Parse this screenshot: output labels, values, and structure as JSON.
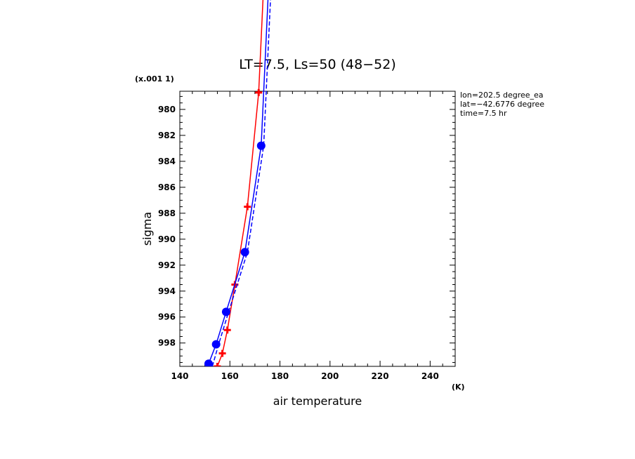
{
  "chart_data": {
    "type": "line",
    "title": "LT=7.5, Ls=50 (48−52)",
    "xlabel": "air temperature",
    "xunit": "(K)",
    "ylabel": "sigma",
    "yscale_label": "(x.001 1)",
    "xlim": [
      140,
      250
    ],
    "ylim": [
      999.8,
      978.6
    ],
    "x_ticks": [
      140,
      160,
      180,
      200,
      220,
      240
    ],
    "x_tick_labels": [
      "140",
      "160",
      "180",
      "200",
      "220",
      "240"
    ],
    "y_ticks": [
      980,
      982,
      984,
      986,
      988,
      990,
      992,
      994,
      996,
      998
    ],
    "y_tick_labels": [
      "980",
      "982",
      "984",
      "986",
      "988",
      "990",
      "992",
      "994",
      "996",
      "998"
    ],
    "grid": false,
    "info_lines": [
      "lon=202.5 degree_ea",
      "lat=−42.6776 degree",
      "time=7.5 hr"
    ],
    "series": [
      {
        "color": "#ff0000",
        "marker": "plus",
        "line_style": "solid",
        "points": [
          [
            155,
            999.8
          ],
          [
            157,
            998.8
          ],
          [
            159,
            997.0
          ],
          [
            162,
            993.5
          ],
          [
            167,
            987.5
          ],
          [
            171.5,
            978.7
          ],
          [
            176,
            960.0
          ]
        ]
      },
      {
        "color": "#0000ff",
        "marker": "circle",
        "line_style": "solid",
        "points": [
          [
            151.5,
            999.6
          ],
          [
            154.5,
            998.1
          ],
          [
            158.5,
            995.6
          ],
          [
            166,
            991.0
          ],
          [
            172.5,
            982.8
          ],
          [
            178,
            960.0
          ]
        ]
      },
      {
        "color": "#0000ff",
        "marker": "none",
        "line_style": "dashed",
        "points": [
          [
            153,
            999.8
          ],
          [
            155.5,
            998.1
          ],
          [
            159.5,
            995.6
          ],
          [
            167,
            991.0
          ],
          [
            173.5,
            982.8
          ],
          [
            179,
            960.0
          ]
        ]
      }
    ]
  }
}
